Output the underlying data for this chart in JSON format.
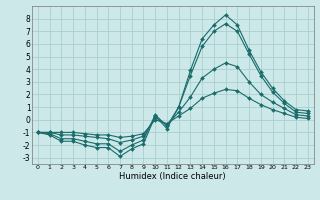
{
  "xlabel": "Humidex (Indice chaleur)",
  "bg_color": "#cce8e8",
  "grid_color": "#aacece",
  "line_color": "#1a6b6b",
  "xlim": [
    -0.5,
    23.5
  ],
  "ylim": [
    -3.5,
    9.0
  ],
  "yticks": [
    -3,
    -2,
    -1,
    0,
    1,
    2,
    3,
    4,
    5,
    6,
    7,
    8
  ],
  "xticks": [
    0,
    1,
    2,
    3,
    4,
    5,
    6,
    7,
    8,
    9,
    10,
    11,
    12,
    13,
    14,
    15,
    16,
    17,
    18,
    19,
    20,
    21,
    22,
    23
  ],
  "series": [
    [
      -1.0,
      -1.2,
      -1.7,
      -1.7,
      -2.0,
      -2.2,
      -2.2,
      -2.9,
      -2.3,
      -1.9,
      0.3,
      -0.7,
      1.0,
      3.9,
      6.4,
      7.5,
      8.3,
      7.5,
      5.5,
      3.8,
      2.5,
      1.5,
      0.8,
      0.7
    ],
    [
      -1.0,
      -1.1,
      -1.5,
      -1.5,
      -1.7,
      -1.9,
      -1.9,
      -2.5,
      -2.0,
      -1.6,
      0.4,
      -0.5,
      1.0,
      3.5,
      5.8,
      7.0,
      7.6,
      7.0,
      5.2,
      3.5,
      2.2,
      1.3,
      0.6,
      0.5
    ],
    [
      -1.0,
      -1.0,
      -1.2,
      -1.2,
      -1.3,
      -1.4,
      -1.5,
      -1.8,
      -1.6,
      -1.3,
      0.2,
      -0.4,
      0.6,
      1.8,
      3.3,
      4.0,
      4.5,
      4.2,
      3.0,
      2.0,
      1.4,
      0.9,
      0.4,
      0.3
    ],
    [
      -1.0,
      -1.0,
      -1.0,
      -1.0,
      -1.1,
      -1.2,
      -1.2,
      -1.4,
      -1.3,
      -1.1,
      0.0,
      -0.3,
      0.3,
      0.9,
      1.7,
      2.1,
      2.4,
      2.3,
      1.7,
      1.2,
      0.8,
      0.5,
      0.2,
      0.1
    ]
  ]
}
